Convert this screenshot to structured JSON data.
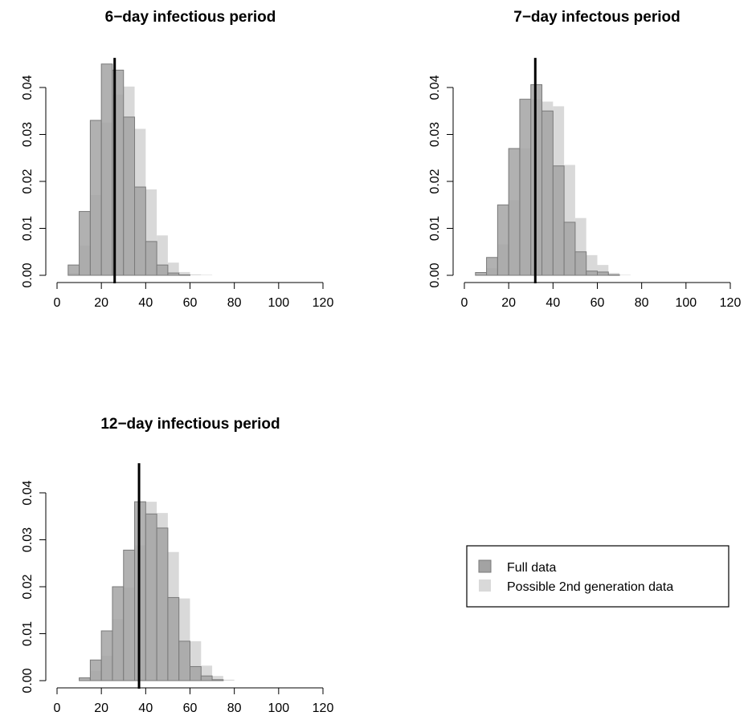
{
  "chart_data": [
    {
      "type": "bar",
      "title": "6−day infectious period",
      "xlabel": "",
      "ylabel": "",
      "xlim": [
        0,
        120
      ],
      "ylim": [
        0,
        0.046
      ],
      "x_ticks": [
        "0",
        "20",
        "40",
        "60",
        "80",
        "100",
        "120"
      ],
      "y_ticks": [
        "0.00",
        "0.01",
        "0.02",
        "0.03",
        "0.04"
      ],
      "bin_width": 5,
      "bin_start": [
        5,
        10,
        15,
        20,
        25,
        30,
        35,
        40,
        45,
        50,
        55,
        60,
        65
      ],
      "series": [
        {
          "name": "Full data",
          "values": [
            0.0022,
            0.0136,
            0.033,
            0.045,
            0.0437,
            0.0337,
            0.0188,
            0.0072,
            0.0022,
            0.0005,
            0.0001,
            0,
            0
          ]
        },
        {
          "name": "Possible 2nd generation data",
          "values": [
            0.0005,
            0.0063,
            0.0171,
            0.0325,
            0.0385,
            0.0402,
            0.0312,
            0.0183,
            0.0085,
            0.0027,
            0.0007,
            0.0002,
            0.0001
          ]
        }
      ],
      "vline": 26
    },
    {
      "type": "bar",
      "title": "7−day infectous period",
      "xlabel": "",
      "ylabel": "",
      "xlim": [
        0,
        120
      ],
      "ylim": [
        0,
        0.046
      ],
      "x_ticks": [
        "0",
        "20",
        "40",
        "60",
        "80",
        "100",
        "120"
      ],
      "y_ticks": [
        "0.00",
        "0.01",
        "0.02",
        "0.03",
        "0.04"
      ],
      "bin_width": 5,
      "bin_start": [
        5,
        10,
        15,
        20,
        25,
        30,
        35,
        40,
        45,
        50,
        55,
        60,
        65,
        70
      ],
      "series": [
        {
          "name": "Full data",
          "values": [
            0.0006,
            0.0038,
            0.015,
            0.027,
            0.0375,
            0.0406,
            0.035,
            0.0233,
            0.0113,
            0.005,
            0.0009,
            0.0007,
            0.0001,
            0
          ]
        },
        {
          "name": "Possible 2nd generation data",
          "values": [
            0.0001,
            0.0015,
            0.0066,
            0.016,
            0.027,
            0.0375,
            0.037,
            0.036,
            0.0235,
            0.0122,
            0.0043,
            0.0022,
            0.0005,
            0.0001
          ]
        }
      ],
      "vline": 32
    },
    {
      "type": "bar",
      "title": "12−day infectious period",
      "xlabel": "",
      "ylabel": "",
      "xlim": [
        0,
        120
      ],
      "ylim": [
        0,
        0.046
      ],
      "x_ticks": [
        "0",
        "20",
        "40",
        "60",
        "80",
        "100",
        "120"
      ],
      "y_ticks": [
        "0.00",
        "0.01",
        "0.02",
        "0.03",
        "0.04"
      ],
      "bin_width": 5,
      "bin_start": [
        10,
        15,
        20,
        25,
        30,
        35,
        40,
        45,
        50,
        55,
        60,
        65,
        70,
        75
      ],
      "series": [
        {
          "name": "Full data",
          "values": [
            0.0006,
            0.0044,
            0.0106,
            0.02,
            0.0278,
            0.0381,
            0.0355,
            0.0325,
            0.0177,
            0.0084,
            0.003,
            0.001,
            0.0002,
            0
          ]
        },
        {
          "name": "Possible 2nd generation data",
          "values": [
            0,
            0.0021,
            0.0053,
            0.0131,
            0.0198,
            0.0288,
            0.0381,
            0.0357,
            0.0274,
            0.0175,
            0.0084,
            0.0032,
            0.001,
            0.0002
          ]
        }
      ],
      "vline": 37
    }
  ],
  "legend": {
    "items": [
      {
        "label": "Full data",
        "color": "#a3a3a3"
      },
      {
        "label": "Possible 2nd generation data",
        "color": "#d9d9d9"
      }
    ]
  },
  "colors": {
    "full": "#a3a3a3",
    "full_border": "#7a7a7a",
    "second_gen": "#d9d9d9",
    "vline": "#000000",
    "axis": "#000000"
  }
}
